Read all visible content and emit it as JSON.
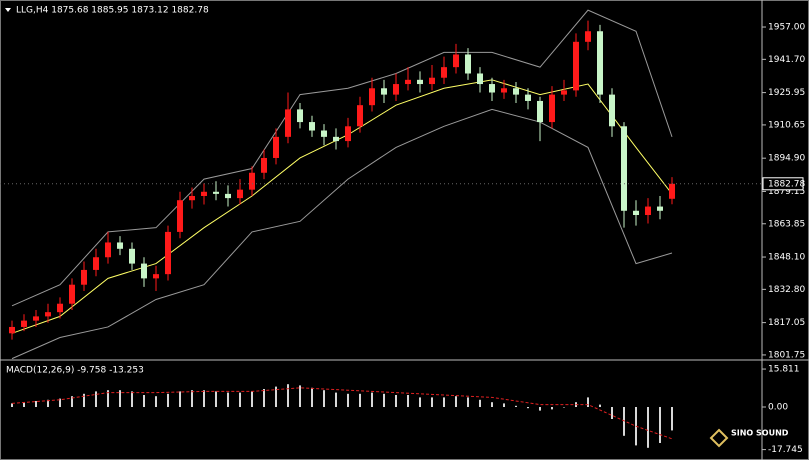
{
  "logo": "SINO SOUND",
  "chart_data": [
    {
      "type": "candlestick",
      "title": "LLG,H4  1875.68 1885.95 1873.12 1882.78",
      "up_color": "#ff1a1a",
      "down_color": "#c8f5c8",
      "open": [
        1812,
        1815,
        1818,
        1820,
        1822,
        1826,
        1835,
        1842,
        1848,
        1855,
        1852,
        1845,
        1838,
        1840,
        1860,
        1875,
        1877,
        1879,
        1878,
        1876,
        1880,
        1888,
        1895,
        1905,
        1918,
        1912,
        1908,
        1905,
        1903,
        1910,
        1920,
        1928,
        1925,
        1930,
        1932,
        1930,
        1933,
        1938,
        1944,
        1935,
        1930,
        1926,
        1928,
        1925,
        1922,
        1912,
        1925,
        1927,
        1950,
        1955,
        1925,
        1910,
        1870,
        1868,
        1872,
        1875.68
      ],
      "high": [
        1818,
        1821,
        1823,
        1826,
        1829,
        1838,
        1846,
        1852,
        1860,
        1858,
        1855,
        1848,
        1844,
        1863,
        1879,
        1881,
        1883,
        1884,
        1882,
        1885,
        1891,
        1899,
        1909,
        1926,
        1921,
        1915,
        1911,
        1909,
        1914,
        1924,
        1933,
        1932,
        1935,
        1938,
        1936,
        1939,
        1943,
        1949,
        1947,
        1938,
        1933,
        1932,
        1931,
        1928,
        1924,
        1929,
        1932,
        1954,
        1960,
        1958,
        1928,
        1912,
        1875,
        1876,
        1877,
        1885.95
      ],
      "low": [
        1809,
        1813,
        1815,
        1817,
        1819,
        1823,
        1832,
        1839,
        1845,
        1849,
        1842,
        1834,
        1832,
        1837,
        1857,
        1871,
        1873,
        1875,
        1872,
        1873,
        1877,
        1885,
        1892,
        1902,
        1909,
        1905,
        1901,
        1899,
        1900,
        1907,
        1917,
        1921,
        1922,
        1927,
        1926,
        1927,
        1930,
        1935,
        1932,
        1926,
        1922,
        1923,
        1921,
        1918,
        1903,
        1909,
        1922,
        1924,
        1946,
        1921,
        1905,
        1862,
        1863,
        1864,
        1866,
        1873.12
      ],
      "close": [
        1815,
        1818,
        1820,
        1822,
        1826,
        1835,
        1842,
        1848,
        1855,
        1852,
        1845,
        1838,
        1840,
        1860,
        1875,
        1877,
        1879,
        1878,
        1876,
        1880,
        1888,
        1895,
        1905,
        1918,
        1912,
        1908,
        1905,
        1903,
        1910,
        1920,
        1928,
        1925,
        1930,
        1932,
        1930,
        1933,
        1938,
        1944,
        1935,
        1930,
        1926,
        1928,
        1925,
        1922,
        1912,
        1925,
        1927,
        1950,
        1955,
        1925,
        1910,
        1870,
        1868,
        1872,
        1870,
        1882.78
      ],
      "line_x": [
        0,
        4,
        8,
        12,
        16,
        20,
        24,
        28,
        32,
        36,
        40,
        44,
        48,
        52,
        55
      ],
      "lines": [
        {
          "color": "#ffff66",
          "values": [
            1812,
            1820,
            1838,
            1845,
            1862,
            1877,
            1895,
            1906,
            1920,
            1928,
            1932,
            1925,
            1930,
            1900,
            1878
          ]
        },
        {
          "color": "#9a9a9a",
          "values": [
            1825,
            1835,
            1860,
            1862,
            1885,
            1890,
            1925,
            1928,
            1935,
            1945,
            1945,
            1938,
            1965,
            1955,
            1905
          ]
        },
        {
          "color": "#9a9a9a",
          "values": [
            1800,
            1810,
            1815,
            1828,
            1835,
            1860,
            1865,
            1885,
            1900,
            1910,
            1918,
            1912,
            1900,
            1845,
            1850
          ]
        }
      ],
      "last_price": 1882.78,
      "ylim": [
        1800.3,
        1967.9
      ],
      "yticks": [
        {
          "value": 1957,
          "label": "1957.00"
        },
        {
          "value": 1941.7,
          "label": "1941.70"
        },
        1925.95,
        1910.65,
        {
          "value": 1894.9,
          "label": "1894.90"
        },
        1879.15,
        1863.85,
        {
          "value": 1848.1,
          "label": "1848.10"
        },
        {
          "value": 1832.8,
          "label": "1832.80"
        },
        1817.05,
        1801.75
      ]
    },
    {
      "type": "bar",
      "title": "MACD(12,26,9) -9.758 -13.253",
      "color": "#d8d8d8",
      "values": [
        1.5,
        2,
        2.5,
        3,
        3.5,
        4.5,
        5.5,
        6.5,
        7,
        7,
        6.5,
        5,
        4.5,
        5.5,
        6.5,
        7,
        7,
        6.5,
        6,
        6,
        6.5,
        7.5,
        8.5,
        9.5,
        9,
        8,
        7,
        6,
        5.5,
        5.5,
        6,
        5.5,
        5,
        5,
        4,
        4,
        4,
        4.5,
        4,
        3,
        2,
        1.5,
        0.5,
        -0.5,
        -1.5,
        -1,
        0,
        2,
        4,
        1,
        -5,
        -12,
        -16,
        -17,
        -15,
        -9.758
      ],
      "signal": {
        "color": "#e02020",
        "x": [
          0,
          4,
          8,
          12,
          16,
          20,
          24,
          28,
          32,
          36,
          40,
          44,
          48,
          52,
          55
        ],
        "values": [
          1.5,
          3,
          6,
          6,
          6.5,
          6.5,
          8,
          7,
          6,
          5,
          4,
          1,
          1,
          -8,
          -13.253
        ]
      },
      "ylim": [
        -21.25,
        18.75
      ],
      "yticks": [
        15.811,
        {
          "value": 0,
          "label": "0.00"
        },
        -17.745
      ]
    }
  ]
}
